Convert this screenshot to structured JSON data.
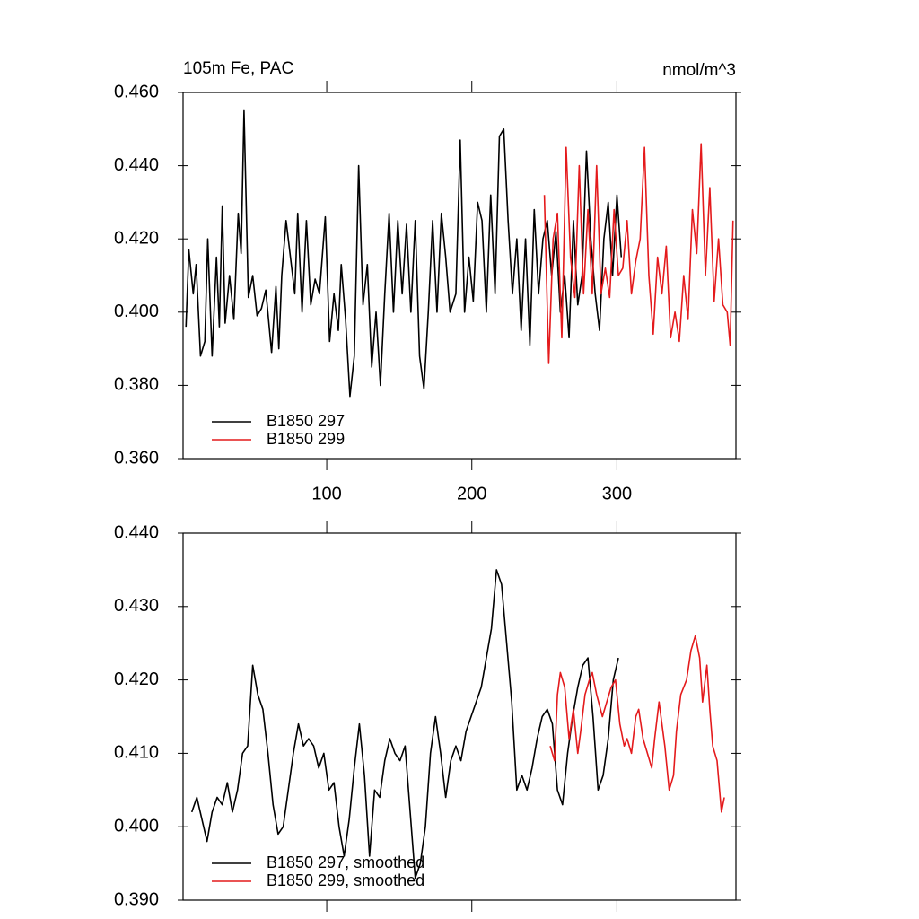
{
  "chart_data": [
    {
      "type": "line",
      "title": "105m Fe, PAC",
      "units": "nmol/m^3",
      "xlim": [
        1,
        382
      ],
      "xticks": [
        100,
        200,
        300
      ],
      "ylim": [
        0.36,
        0.46
      ],
      "yticks": [
        {
          "value": 0.36,
          "label": "0.360"
        },
        {
          "value": 0.38,
          "label": "0.380"
        },
        {
          "value": 0.4,
          "label": "0.400"
        },
        {
          "value": 0.42,
          "label": "0.420"
        },
        {
          "value": 0.44,
          "label": "0.440"
        },
        {
          "value": 0.46,
          "label": "0.460"
        }
      ],
      "legend": "lower left",
      "series": [
        {
          "name": "B1850 297",
          "color": "#000000",
          "x": [
            3,
            5,
            8,
            10,
            13,
            16,
            18,
            21,
            24,
            26,
            28,
            30,
            33,
            36,
            39,
            41,
            43,
            46,
            49,
            52,
            55,
            58,
            62,
            65,
            67,
            69,
            72,
            75,
            78,
            80,
            83,
            86,
            89,
            92,
            95,
            99,
            102,
            105,
            108,
            110,
            113,
            116,
            119,
            122,
            125,
            128,
            131,
            134,
            137,
            140,
            143,
            146,
            149,
            152,
            155,
            158,
            161,
            164,
            167,
            170,
            173,
            176,
            179,
            182,
            185,
            189,
            192,
            195,
            198,
            201,
            204,
            207,
            210,
            213,
            216,
            219,
            222,
            225,
            228,
            231,
            234,
            237,
            240,
            243,
            246,
            249,
            252,
            255,
            258,
            261,
            264,
            267,
            270,
            273,
            276,
            279,
            282,
            285,
            288,
            291,
            294,
            297,
            300,
            303
          ],
          "values": [
            0.396,
            0.417,
            0.405,
            0.413,
            0.388,
            0.392,
            0.42,
            0.388,
            0.415,
            0.396,
            0.429,
            0.397,
            0.41,
            0.398,
            0.427,
            0.416,
            0.455,
            0.404,
            0.41,
            0.399,
            0.401,
            0.406,
            0.389,
            0.407,
            0.39,
            0.41,
            0.425,
            0.415,
            0.405,
            0.427,
            0.4,
            0.425,
            0.402,
            0.409,
            0.405,
            0.426,
            0.392,
            0.405,
            0.395,
            0.413,
            0.398,
            0.377,
            0.388,
            0.44,
            0.402,
            0.413,
            0.385,
            0.4,
            0.38,
            0.405,
            0.427,
            0.4,
            0.425,
            0.405,
            0.424,
            0.4,
            0.425,
            0.388,
            0.379,
            0.4,
            0.425,
            0.4,
            0.427,
            0.415,
            0.4,
            0.405,
            0.447,
            0.4,
            0.415,
            0.403,
            0.43,
            0.425,
            0.4,
            0.432,
            0.405,
            0.448,
            0.45,
            0.425,
            0.405,
            0.42,
            0.395,
            0.42,
            0.391,
            0.428,
            0.405,
            0.42,
            0.425,
            0.41,
            0.422,
            0.4,
            0.41,
            0.393,
            0.425,
            0.402,
            0.41,
            0.444,
            0.42,
            0.405,
            0.395,
            0.42,
            0.43,
            0.41,
            0.432,
            0.415
          ]
        },
        {
          "name": "B1850 299",
          "color": "#e41a1c",
          "x": [
            250,
            253,
            256,
            259,
            262,
            265,
            268,
            271,
            274,
            277,
            280,
            283,
            286,
            289,
            292,
            295,
            298,
            301,
            304,
            307,
            310,
            313,
            316,
            319,
            322,
            325,
            328,
            331,
            334,
            337,
            340,
            343,
            346,
            349,
            352,
            355,
            358,
            361,
            364,
            367,
            370,
            373,
            376,
            378,
            380
          ],
          "values": [
            0.432,
            0.386,
            0.42,
            0.427,
            0.393,
            0.445,
            0.415,
            0.404,
            0.44,
            0.405,
            0.428,
            0.405,
            0.44,
            0.405,
            0.412,
            0.404,
            0.428,
            0.41,
            0.412,
            0.425,
            0.405,
            0.414,
            0.42,
            0.445,
            0.41,
            0.394,
            0.415,
            0.405,
            0.418,
            0.393,
            0.4,
            0.392,
            0.41,
            0.398,
            0.428,
            0.416,
            0.446,
            0.41,
            0.434,
            0.403,
            0.42,
            0.402,
            0.4,
            0.391,
            0.425
          ]
        }
      ]
    },
    {
      "type": "line",
      "xlim": [
        1,
        382
      ],
      "xticks": [
        100,
        200,
        300
      ],
      "ylim": [
        0.39,
        0.44
      ],
      "yticks": [
        {
          "value": 0.39,
          "label": "0.390"
        },
        {
          "value": 0.4,
          "label": "0.400"
        },
        {
          "value": 0.41,
          "label": "0.410"
        },
        {
          "value": 0.42,
          "label": "0.420"
        },
        {
          "value": 0.43,
          "label": "0.430"
        },
        {
          "value": 0.44,
          "label": "0.440"
        }
      ],
      "legend": "lower left",
      "series": [
        {
          "name": "B1850 297, smoothed",
          "color": "#000000",
          "x": [
            7,
            10.5,
            14,
            17.5,
            21,
            24.5,
            28,
            31.5,
            35,
            38.5,
            42,
            45.5,
            49,
            52.5,
            56,
            59.5,
            63,
            66.5,
            70,
            73.5,
            77,
            80.5,
            84,
            87.5,
            91,
            94.5,
            98,
            101.5,
            105,
            108.5,
            112,
            115.5,
            119,
            122.5,
            126,
            129.5,
            133,
            136.5,
            140,
            143.5,
            147,
            150.5,
            154,
            157.5,
            161,
            164.5,
            168,
            171.5,
            175,
            178.5,
            182,
            185.5,
            189,
            192.5,
            196,
            199.5,
            203,
            206.5,
            210,
            213.5,
            217,
            220.5,
            224,
            227.5,
            231,
            234.5,
            238,
            241.5,
            245,
            248.5,
            252,
            255.5,
            259,
            262.5,
            266,
            269.5,
            273,
            276.5,
            280,
            283.5,
            287,
            290.5,
            294,
            297.5,
            301
          ],
          "values": [
            0.402,
            0.404,
            0.401,
            0.398,
            0.402,
            0.404,
            0.403,
            0.406,
            0.402,
            0.405,
            0.41,
            0.411,
            0.422,
            0.418,
            0.416,
            0.41,
            0.403,
            0.399,
            0.4,
            0.405,
            0.41,
            0.414,
            0.411,
            0.412,
            0.411,
            0.408,
            0.41,
            0.405,
            0.406,
            0.4,
            0.396,
            0.401,
            0.408,
            0.414,
            0.407,
            0.396,
            0.405,
            0.404,
            0.409,
            0.412,
            0.41,
            0.409,
            0.411,
            0.402,
            0.393,
            0.395,
            0.4,
            0.41,
            0.415,
            0.41,
            0.404,
            0.409,
            0.411,
            0.409,
            0.413,
            0.415,
            0.417,
            0.419,
            0.423,
            0.427,
            0.435,
            0.433,
            0.425,
            0.417,
            0.405,
            0.407,
            0.405,
            0.408,
            0.412,
            0.415,
            0.416,
            0.414,
            0.405,
            0.403,
            0.41,
            0.415,
            0.419,
            0.422,
            0.423,
            0.415,
            0.405,
            0.407,
            0.412,
            0.42,
            0.423
          ]
        },
        {
          "name": "B1850 299, smoothed",
          "color": "#e41a1c",
          "x": [
            254,
            257,
            259,
            261,
            264,
            267,
            270,
            273,
            275,
            278,
            281,
            283,
            286,
            290,
            293,
            296,
            299,
            302,
            305,
            307,
            310,
            313,
            315,
            318,
            321,
            324,
            326,
            329,
            333,
            336,
            339,
            341,
            344,
            348,
            351,
            354,
            357,
            359,
            362,
            364,
            366,
            369,
            372,
            374
          ],
          "values": [
            0.411,
            0.409,
            0.418,
            0.421,
            0.419,
            0.412,
            0.416,
            0.41,
            0.413,
            0.418,
            0.42,
            0.421,
            0.418,
            0.415,
            0.417,
            0.419,
            0.42,
            0.414,
            0.411,
            0.412,
            0.41,
            0.415,
            0.416,
            0.412,
            0.41,
            0.408,
            0.412,
            0.417,
            0.411,
            0.405,
            0.407,
            0.413,
            0.418,
            0.42,
            0.424,
            0.426,
            0.423,
            0.417,
            0.422,
            0.416,
            0.411,
            0.409,
            0.402,
            0.404
          ]
        }
      ]
    }
  ]
}
